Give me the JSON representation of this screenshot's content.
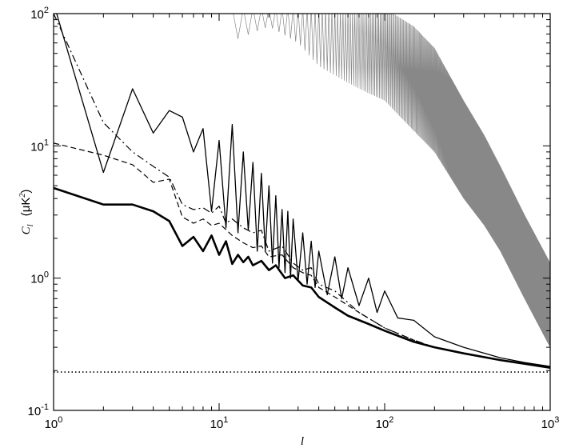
{
  "chart_data": {
    "type": "line",
    "title": "",
    "xlabel": "l",
    "ylabel": "C_l (μK²)",
    "x_scale": "log",
    "y_scale": "log",
    "xlim": [
      1,
      1000
    ],
    "ylim": [
      0.1,
      100
    ],
    "grid": false,
    "legend": "none",
    "x_ticks": [
      {
        "value": 1,
        "base": "10",
        "exp": "0"
      },
      {
        "value": 10,
        "base": "10",
        "exp": "1"
      },
      {
        "value": 100,
        "base": "10",
        "exp": "2"
      },
      {
        "value": 1000,
        "base": "10",
        "exp": "3"
      }
    ],
    "y_ticks": [
      {
        "value": 0.1,
        "base": "10",
        "exp": "-1"
      },
      {
        "value": 1,
        "base": "10",
        "exp": "0"
      },
      {
        "value": 10,
        "base": "10",
        "exp": "1"
      },
      {
        "value": 100,
        "base": "10",
        "exp": "2"
      }
    ],
    "ylabel_parts": {
      "c": "C",
      "sub": "l",
      "unit": "(μK",
      "sup": "2",
      "close": ")"
    },
    "series": [
      {
        "style": "thick-solid",
        "color": "#000000",
        "points": [
          [
            1,
            4.8
          ],
          [
            2,
            3.6
          ],
          [
            3,
            3.6
          ],
          [
            4,
            3.2
          ],
          [
            5,
            2.7
          ],
          [
            6,
            1.75
          ],
          [
            7,
            2.05
          ],
          [
            8,
            1.6
          ],
          [
            9,
            2.1
          ],
          [
            10,
            1.5
          ],
          [
            11,
            1.9
          ],
          [
            12,
            1.28
          ],
          [
            13,
            1.5
          ],
          [
            14,
            1.32
          ],
          [
            15,
            1.45
          ],
          [
            16,
            1.25
          ],
          [
            18,
            1.35
          ],
          [
            20,
            1.15
          ],
          [
            22,
            1.25
          ],
          [
            25,
            1.0
          ],
          [
            28,
            1.05
          ],
          [
            32,
            0.88
          ],
          [
            36,
            0.85
          ],
          [
            40,
            0.72
          ],
          [
            50,
            0.6
          ],
          [
            60,
            0.52
          ],
          [
            80,
            0.45
          ],
          [
            100,
            0.4
          ],
          [
            150,
            0.33
          ],
          [
            200,
            0.3
          ],
          [
            300,
            0.27
          ],
          [
            500,
            0.24
          ],
          [
            700,
            0.225
          ],
          [
            1000,
            0.21
          ]
        ]
      },
      {
        "style": "thin-solid",
        "color": "#000000",
        "points": [
          [
            1,
            120
          ],
          [
            2,
            6.3
          ],
          [
            3,
            27
          ],
          [
            4,
            12.5
          ],
          [
            5,
            18.5
          ],
          [
            6,
            16.5
          ],
          [
            7,
            9
          ],
          [
            8,
            13.5
          ],
          [
            9,
            3.2
          ],
          [
            10,
            11
          ],
          [
            11,
            2.4
          ],
          [
            12,
            14.5
          ],
          [
            13,
            2.2
          ],
          [
            14,
            9
          ],
          [
            15,
            2.3
          ],
          [
            16,
            7.5
          ],
          [
            17,
            1.6
          ],
          [
            18,
            6.2
          ],
          [
            19,
            1.6
          ],
          [
            20,
            5
          ],
          [
            21,
            1.3
          ],
          [
            22,
            4.2
          ],
          [
            23,
            1.2
          ],
          [
            24,
            3.3
          ],
          [
            25,
            1.1
          ],
          [
            26,
            3.2
          ],
          [
            27,
            1.0
          ],
          [
            28,
            2.8
          ],
          [
            30,
            0.95
          ],
          [
            32,
            2.2
          ],
          [
            34,
            0.9
          ],
          [
            36,
            1.9
          ],
          [
            38,
            0.85
          ],
          [
            40,
            1.6
          ],
          [
            45,
            0.75
          ],
          [
            50,
            1.45
          ],
          [
            55,
            0.7
          ],
          [
            60,
            1.2
          ],
          [
            70,
            0.62
          ],
          [
            80,
            1.0
          ],
          [
            90,
            0.55
          ],
          [
            100,
            0.8
          ],
          [
            120,
            0.5
          ],
          [
            150,
            0.48
          ],
          [
            200,
            0.36
          ],
          [
            300,
            0.3
          ],
          [
            500,
            0.25
          ],
          [
            700,
            0.23
          ],
          [
            1000,
            0.215
          ]
        ]
      },
      {
        "style": "dash-dot",
        "color": "#000000",
        "points": [
          [
            1,
            100
          ],
          [
            2,
            15
          ],
          [
            3,
            9
          ],
          [
            4,
            7
          ],
          [
            5,
            5.8
          ],
          [
            6,
            3.6
          ],
          [
            7,
            3.3
          ],
          [
            8,
            3.4
          ],
          [
            9,
            3.1
          ],
          [
            10,
            3.5
          ],
          [
            11,
            2.6
          ],
          [
            12,
            2.8
          ],
          [
            14,
            2.4
          ],
          [
            16,
            2.2
          ],
          [
            18,
            2.3
          ],
          [
            20,
            1.6
          ],
          [
            24,
            1.75
          ],
          [
            28,
            1.3
          ],
          [
            32,
            1.15
          ],
          [
            36,
            1.2
          ],
          [
            40,
            0.9
          ],
          [
            50,
            0.8
          ],
          [
            70,
            0.55
          ],
          [
            100,
            0.42
          ],
          [
            150,
            0.34
          ],
          [
            200,
            0.3
          ],
          [
            300,
            0.27
          ],
          [
            500,
            0.24
          ],
          [
            1000,
            0.21
          ]
        ]
      },
      {
        "style": "dashed",
        "color": "#000000",
        "points": [
          [
            1,
            10.5
          ],
          [
            2,
            8.5
          ],
          [
            3,
            7.2
          ],
          [
            4,
            5.3
          ],
          [
            5,
            5.6
          ],
          [
            6,
            2.9
          ],
          [
            7,
            2.6
          ],
          [
            8,
            2.8
          ],
          [
            9,
            2.5
          ],
          [
            10,
            2.6
          ],
          [
            12,
            2.1
          ],
          [
            14,
            1.85
          ],
          [
            16,
            1.7
          ],
          [
            18,
            1.75
          ],
          [
            20,
            1.45
          ],
          [
            24,
            1.5
          ],
          [
            28,
            1.2
          ],
          [
            32,
            1.1
          ],
          [
            36,
            1.05
          ],
          [
            40,
            0.85
          ],
          [
            50,
            0.72
          ],
          [
            70,
            0.55
          ],
          [
            100,
            0.42
          ],
          [
            150,
            0.34
          ],
          [
            200,
            0.3
          ],
          [
            300,
            0.27
          ],
          [
            500,
            0.24
          ],
          [
            1000,
            0.21
          ]
        ]
      },
      {
        "style": "dotted",
        "color": "#000000",
        "points": [
          [
            1,
            0.195
          ],
          [
            1000,
            0.195
          ]
        ]
      },
      {
        "style": "gray-oscillating",
        "color": "#888888",
        "envelope_max": [
          [
            12,
            110
          ],
          [
            20,
            110
          ],
          [
            50,
            110
          ],
          [
            100,
            110
          ],
          [
            150,
            80
          ],
          [
            200,
            55
          ],
          [
            300,
            22
          ],
          [
            400,
            12
          ],
          [
            500,
            7
          ],
          [
            700,
            3
          ],
          [
            1000,
            1.3
          ]
        ],
        "envelope_min": [
          [
            12,
            62
          ],
          [
            20,
            80
          ],
          [
            30,
            60
          ],
          [
            40,
            40
          ],
          [
            60,
            30
          ],
          [
            80,
            25
          ],
          [
            100,
            22
          ],
          [
            150,
            13
          ],
          [
            200,
            9
          ],
          [
            300,
            4
          ],
          [
            400,
            2.5
          ],
          [
            500,
            1.6
          ],
          [
            700,
            0.7
          ],
          [
            1000,
            0.3
          ]
        ]
      }
    ]
  }
}
